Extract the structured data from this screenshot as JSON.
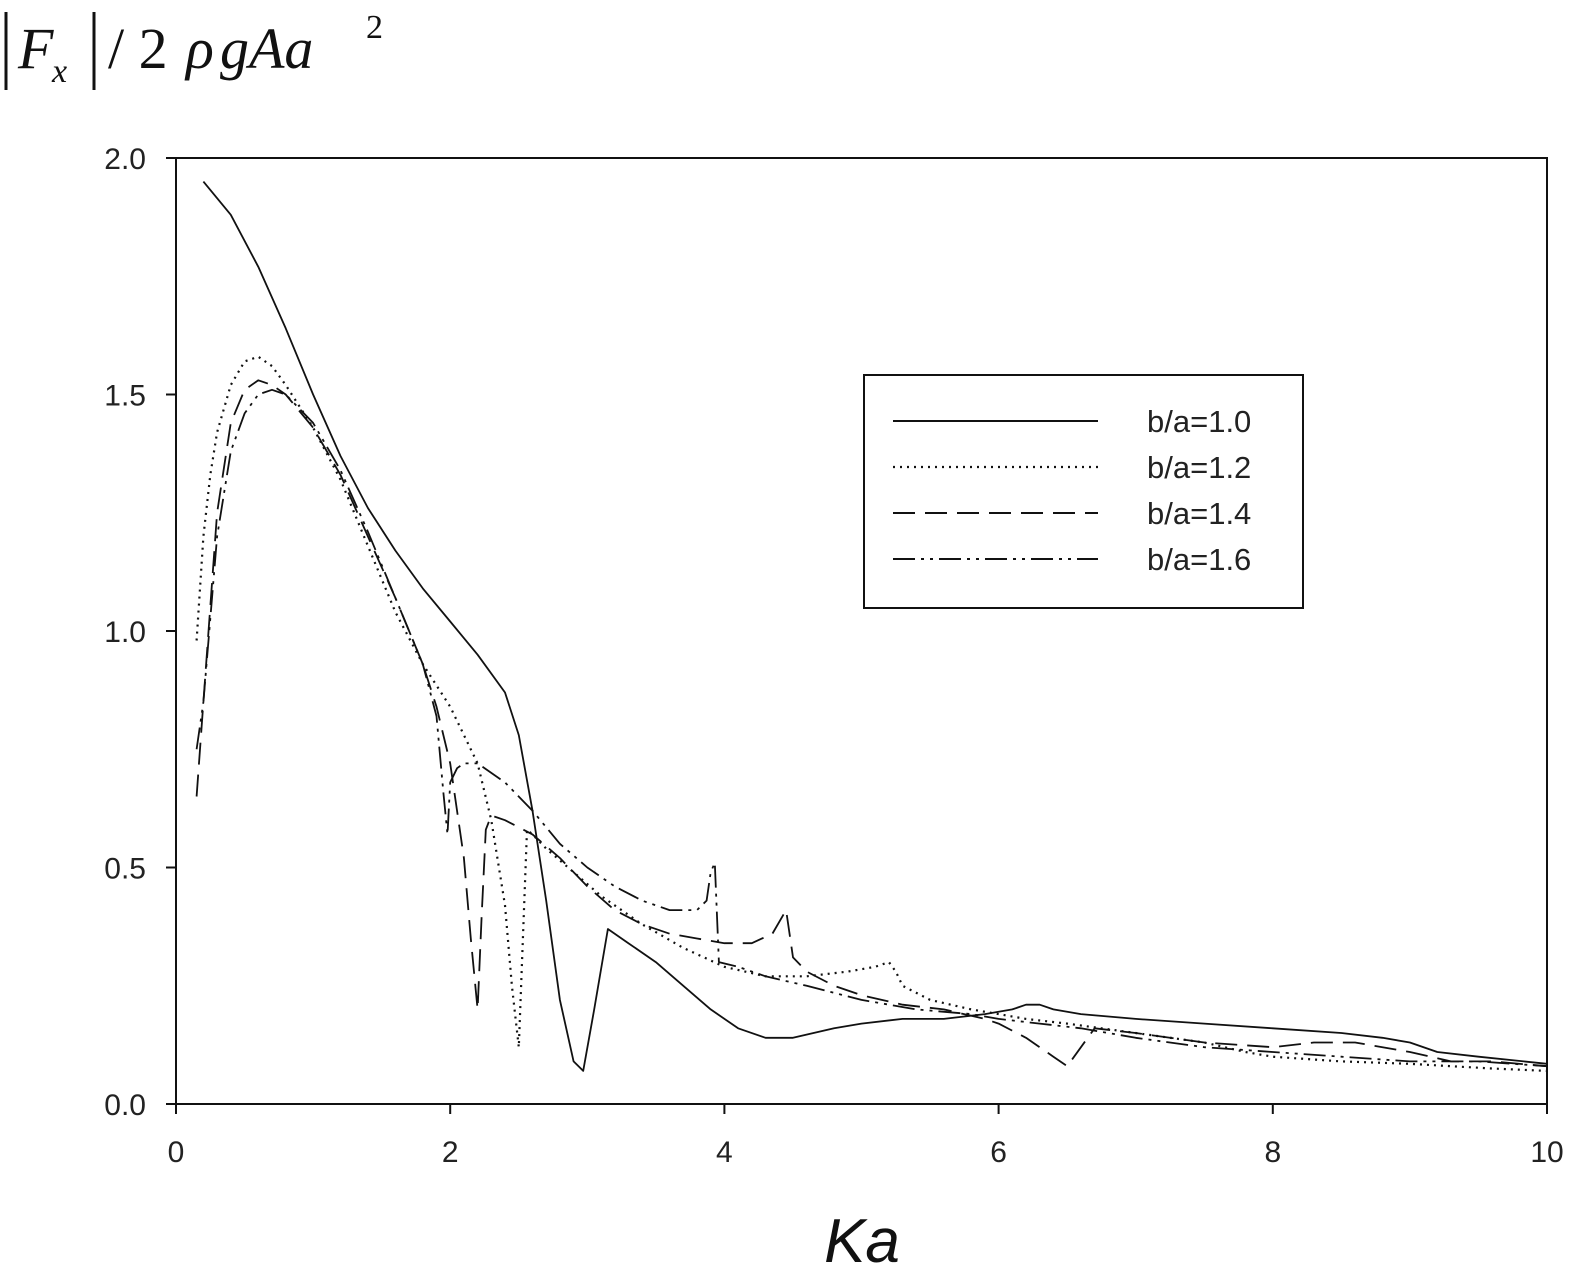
{
  "chart_data": {
    "type": "line",
    "title": "",
    "xlabel": "Ka",
    "ylabel": {
      "F": "F",
      "sub_x": "x",
      "rest_prefix": "/ 2",
      "rho": "ρ",
      "gAa": "gAa",
      "sup": "2"
    },
    "xlim": [
      0,
      10
    ],
    "ylim": [
      0,
      2
    ],
    "xticks": [
      0,
      2,
      4,
      6,
      8,
      10
    ],
    "xtick_labels": [
      "0",
      "2",
      "4",
      "6",
      "8",
      "10"
    ],
    "yticks": [
      0,
      0.5,
      1,
      1.5,
      2
    ],
    "ytick_labels": [
      "0.0",
      "0.5",
      "1.0",
      "1.5",
      "2.0"
    ],
    "grid": false,
    "legend_position": "upper-right",
    "series": [
      {
        "name": "b/a=1.0",
        "style": "solid",
        "x": [
          0.2,
          0.4,
          0.6,
          0.8,
          1.0,
          1.2,
          1.4,
          1.6,
          1.8,
          2.0,
          2.2,
          2.4,
          2.5,
          2.6,
          2.7,
          2.8,
          2.9,
          2.97,
          3.05,
          3.15,
          3.3,
          3.5,
          3.7,
          3.9,
          4.1,
          4.3,
          4.5,
          4.8,
          5.0,
          5.3,
          5.6,
          5.9,
          6.1,
          6.2,
          6.3,
          6.4,
          6.6,
          7.0,
          7.5,
          8.0,
          8.5,
          8.8,
          9.0,
          9.2,
          9.5,
          10.0
        ],
        "y": [
          1.95,
          1.88,
          1.77,
          1.64,
          1.5,
          1.37,
          1.26,
          1.17,
          1.09,
          1.02,
          0.95,
          0.87,
          0.78,
          0.62,
          0.43,
          0.22,
          0.09,
          0.07,
          0.2,
          0.37,
          0.34,
          0.3,
          0.25,
          0.2,
          0.16,
          0.14,
          0.14,
          0.16,
          0.17,
          0.18,
          0.18,
          0.19,
          0.2,
          0.21,
          0.21,
          0.2,
          0.19,
          0.18,
          0.17,
          0.16,
          0.15,
          0.14,
          0.13,
          0.11,
          0.1,
          0.085
        ]
      },
      {
        "name": "b/a=1.2",
        "style": "dotted",
        "x": [
          0.15,
          0.2,
          0.25,
          0.3,
          0.4,
          0.5,
          0.6,
          0.7,
          0.8,
          1.0,
          1.2,
          1.4,
          1.6,
          1.8,
          2.0,
          2.2,
          2.3,
          2.4,
          2.45,
          2.5,
          2.53,
          2.56,
          2.6,
          2.7,
          2.9,
          3.1,
          3.4,
          3.7,
          4.0,
          4.3,
          4.6,
          4.9,
          5.1,
          5.2,
          5.25,
          5.3,
          5.5,
          5.8,
          6.0,
          6.2,
          6.5,
          7.0,
          7.5,
          7.8,
          8.0,
          8.5,
          9.0,
          9.3,
          9.6,
          10.0
        ],
        "y": [
          0.98,
          1.2,
          1.33,
          1.42,
          1.52,
          1.57,
          1.58,
          1.56,
          1.52,
          1.43,
          1.32,
          1.18,
          1.04,
          0.93,
          0.84,
          0.72,
          0.6,
          0.42,
          0.25,
          0.12,
          0.35,
          0.58,
          0.57,
          0.54,
          0.49,
          0.44,
          0.38,
          0.33,
          0.29,
          0.27,
          0.27,
          0.28,
          0.29,
          0.3,
          0.28,
          0.25,
          0.22,
          0.2,
          0.19,
          0.18,
          0.17,
          0.15,
          0.13,
          0.11,
          0.1,
          0.09,
          0.085,
          0.08,
          0.075,
          0.07
        ]
      },
      {
        "name": "b/a=1.4",
        "style": "dashed",
        "x": [
          0.15,
          0.2,
          0.3,
          0.4,
          0.5,
          0.6,
          0.7,
          0.8,
          1.0,
          1.2,
          1.4,
          1.6,
          1.8,
          1.9,
          2.0,
          2.1,
          2.15,
          2.2,
          2.23,
          2.26,
          2.3,
          2.4,
          2.6,
          2.8,
          3.0,
          3.2,
          3.4,
          3.6,
          3.8,
          4.0,
          4.2,
          4.35,
          4.45,
          4.5,
          4.6,
          4.8,
          5.0,
          5.3,
          5.6,
          5.9,
          6.0,
          6.2,
          6.4,
          6.5,
          6.7,
          7.0,
          7.5,
          8.0,
          8.3,
          8.6,
          9.0,
          9.3,
          9.6,
          10.0
        ],
        "y": [
          0.65,
          0.85,
          1.25,
          1.44,
          1.51,
          1.53,
          1.52,
          1.5,
          1.43,
          1.33,
          1.2,
          1.07,
          0.93,
          0.84,
          0.72,
          0.52,
          0.35,
          0.2,
          0.4,
          0.58,
          0.61,
          0.6,
          0.57,
          0.52,
          0.46,
          0.41,
          0.38,
          0.36,
          0.35,
          0.34,
          0.34,
          0.36,
          0.41,
          0.31,
          0.28,
          0.25,
          0.23,
          0.21,
          0.2,
          0.18,
          0.17,
          0.14,
          0.1,
          0.08,
          0.16,
          0.15,
          0.13,
          0.12,
          0.13,
          0.13,
          0.11,
          0.09,
          0.09,
          0.08
        ]
      },
      {
        "name": "b/a=1.6",
        "style": "dashdotdot",
        "x": [
          0.15,
          0.2,
          0.3,
          0.4,
          0.5,
          0.6,
          0.7,
          0.8,
          1.0,
          1.2,
          1.4,
          1.6,
          1.8,
          1.9,
          1.95,
          1.98,
          2.0,
          2.05,
          2.1,
          2.2,
          2.4,
          2.6,
          2.8,
          3.0,
          3.2,
          3.4,
          3.6,
          3.8,
          3.87,
          3.9,
          3.93,
          3.96,
          4.1,
          4.3,
          4.6,
          5.0,
          5.4,
          5.8,
          6.0,
          6.3,
          6.6,
          6.8,
          7.0,
          7.5,
          8.0,
          8.5,
          9.0,
          9.5,
          10.0
        ],
        "y": [
          0.75,
          0.85,
          1.2,
          1.38,
          1.46,
          1.5,
          1.51,
          1.5,
          1.44,
          1.34,
          1.21,
          1.07,
          0.93,
          0.82,
          0.66,
          0.57,
          0.68,
          0.71,
          0.72,
          0.72,
          0.68,
          0.62,
          0.55,
          0.5,
          0.46,
          0.43,
          0.41,
          0.41,
          0.43,
          0.49,
          0.51,
          0.3,
          0.29,
          0.27,
          0.25,
          0.22,
          0.2,
          0.19,
          0.18,
          0.17,
          0.16,
          0.15,
          0.14,
          0.12,
          0.11,
          0.1,
          0.09,
          0.09,
          0.08
        ]
      }
    ]
  }
}
